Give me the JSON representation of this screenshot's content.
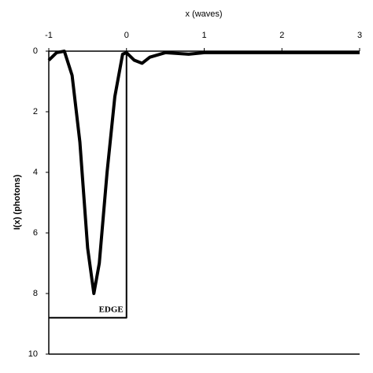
{
  "chart_data": {
    "type": "line",
    "xlabel": "x (waves)",
    "ylabel": "I(x) (photons)",
    "x": [
      -1,
      -0.9,
      -0.8,
      -0.7,
      -0.6,
      -0.5,
      -0.42,
      -0.35,
      -0.25,
      -0.15,
      -0.05,
      0,
      0.1,
      0.2,
      0.3,
      0.5,
      0.8,
      1,
      1.5,
      2,
      3
    ],
    "values": [
      0.3,
      0.05,
      0,
      0.8,
      3,
      6.5,
      8,
      7,
      4,
      1.5,
      0.1,
      0.05,
      0.3,
      0.4,
      0.2,
      0.05,
      0.1,
      0.05,
      0.05,
      0.05,
      0.05
    ],
    "color": "#000000",
    "edge": {
      "label": "EDGE",
      "x": [
        -1,
        0,
        0
      ],
      "values": [
        8.8,
        8.8,
        0
      ]
    },
    "xlim": [
      -1,
      3
    ],
    "xticks": [
      -1,
      0,
      1,
      2,
      3
    ],
    "ylim": [
      0,
      10
    ],
    "yticks": [
      0,
      2,
      4,
      6,
      8,
      10
    ],
    "y_inverted": true
  }
}
